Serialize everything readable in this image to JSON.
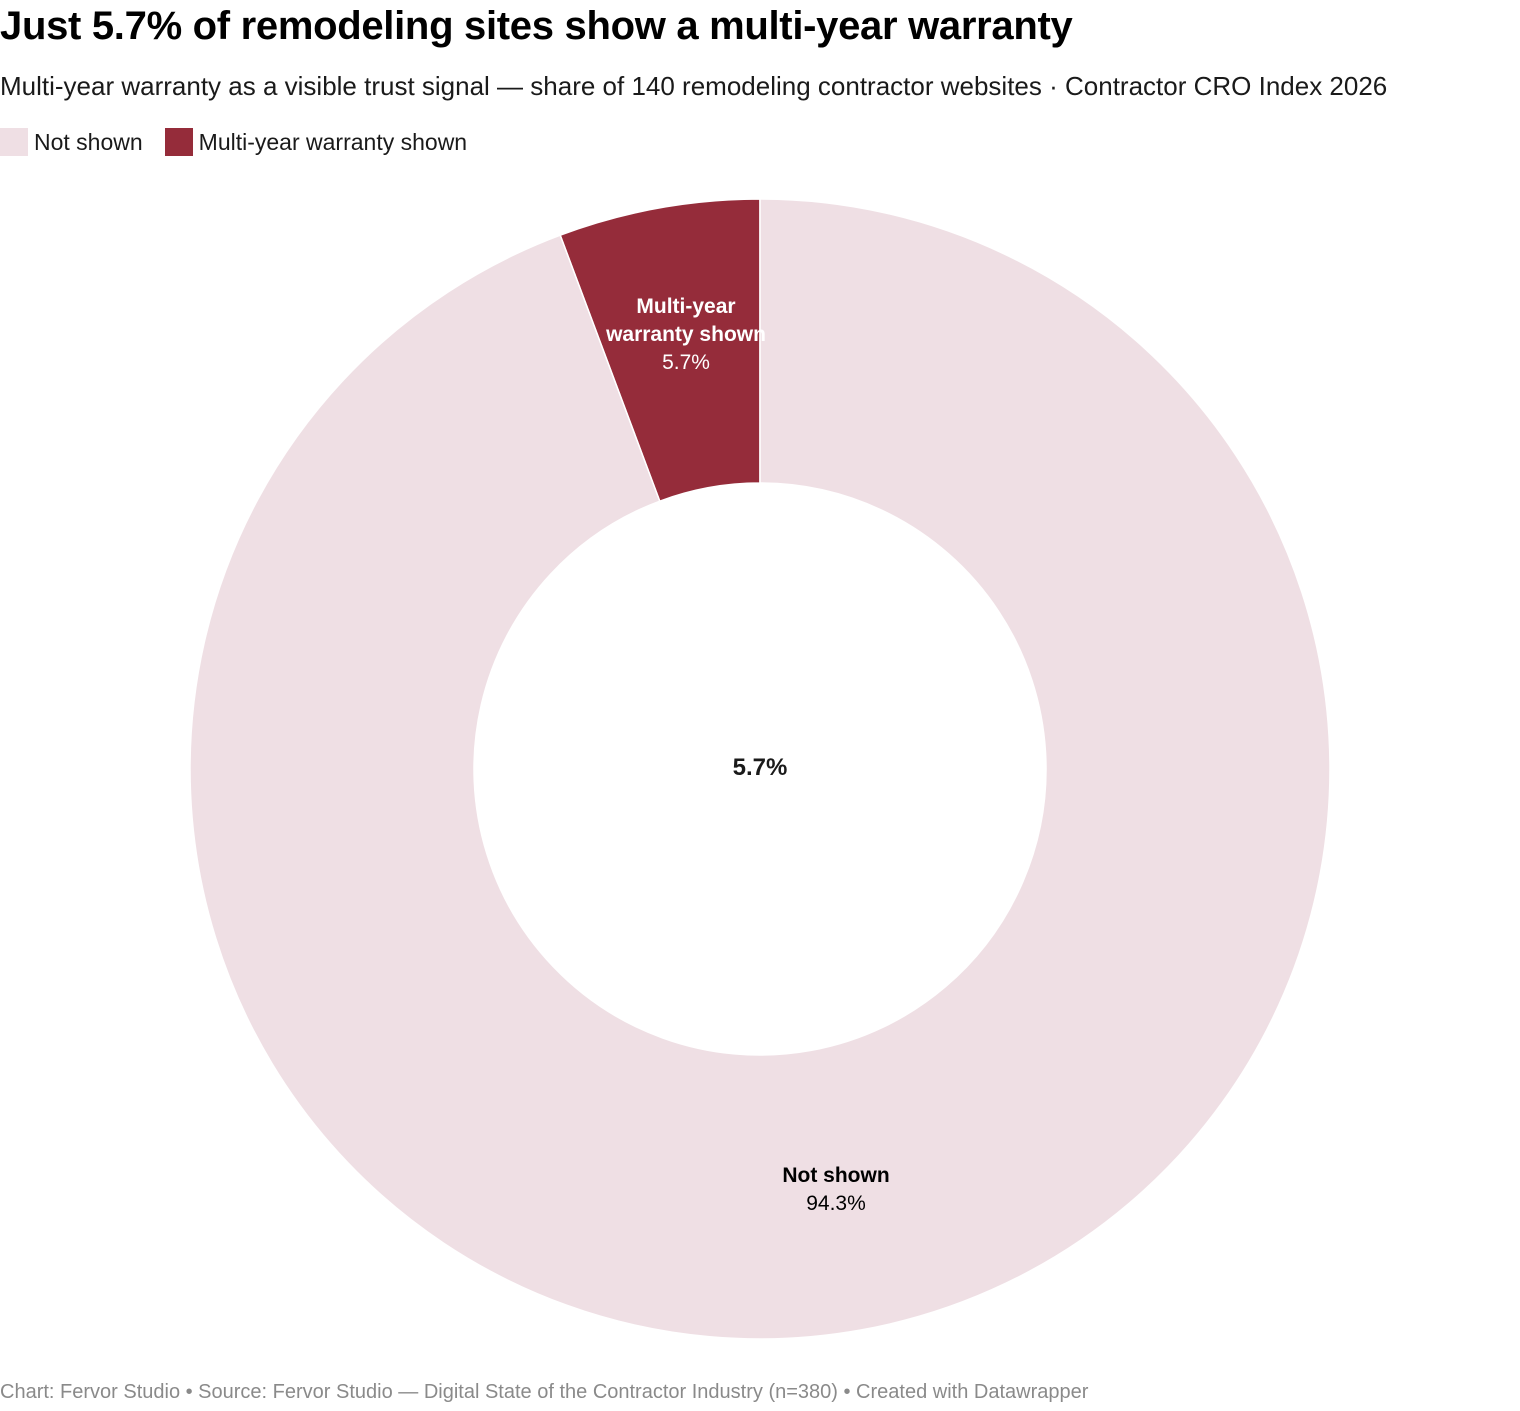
{
  "title": "Just 5.7% of remodeling sites show a multi-year warranty",
  "subtitle": "Multi-year warranty as a visible trust signal — share of 140 remodeling contractor websites · Contractor CRO Index 2026",
  "legend": {
    "items": [
      {
        "label": "Not shown",
        "color": "#efdfe4"
      },
      {
        "label": "Multi-year warranty shown",
        "color": "#952c3a"
      }
    ]
  },
  "center_label": "5.7%",
  "slice_labels": {
    "warranty": {
      "name": "Multi-year warranty shown",
      "value": "5.7%"
    },
    "not_shown": {
      "name": "Not shown",
      "value": "94.3%"
    }
  },
  "footer": "Chart: Fervor Studio • Source: Fervor Studio — Digital State of the Contractor Industry (n=380) • Created with Datawrapper",
  "chart_data": {
    "type": "pie",
    "variant": "donut",
    "categories": [
      "Multi-year warranty shown",
      "Not shown"
    ],
    "values": [
      5.7,
      94.3
    ],
    "unit": "%",
    "colors": [
      "#952c3a",
      "#efdfe4"
    ],
    "title": "Just 5.7% of remodeling sites show a multi-year warranty",
    "legend_position": "top-left"
  }
}
